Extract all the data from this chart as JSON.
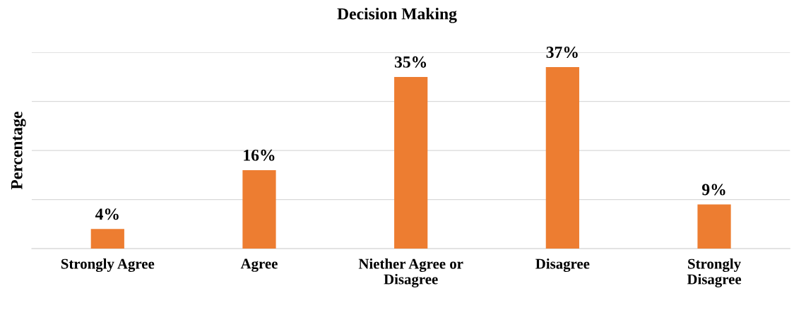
{
  "chart_data": {
    "type": "bar",
    "title": "Decision Making",
    "ylabel": "Percentage",
    "categories": [
      "Strongly Agree",
      "Agree",
      "Niether Agree or\nDisagree",
      "Disagree",
      "Strongly\nDisagree"
    ],
    "values": [
      4,
      16,
      35,
      37,
      9
    ],
    "color": "#ed7d31",
    "value_labels": [
      "4%",
      "16%",
      "35%",
      "37%",
      "9%"
    ],
    "ylim": [
      0,
      40
    ],
    "yticks": [
      {
        "value": 0,
        "label": null
      },
      {
        "value": 10,
        "label": null
      },
      {
        "value": 20,
        "label": null
      },
      {
        "value": 30,
        "label": null
      },
      {
        "value": 40,
        "label": null
      }
    ],
    "grid": "y",
    "tick_labels": "x"
  }
}
